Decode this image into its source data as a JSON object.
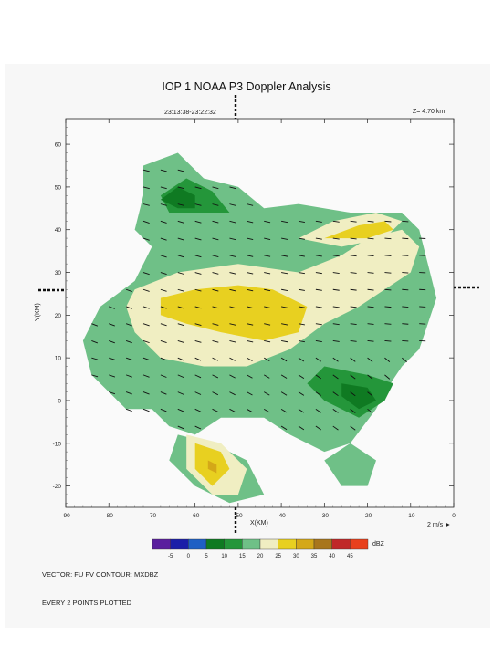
{
  "header": {
    "title": "IOP 1 NOAA P3 Doppler Analysis",
    "time_range": "23:13:38-23:22:32",
    "z_level": "Z=  4.70 km"
  },
  "footer": {
    "line1": "VECTOR: FU FV CONTOUR: MXDBZ",
    "line2": "EVERY  2 POINTS PLOTTED"
  },
  "scale_label": "2 m/s",
  "chart_data": {
    "type": "heatmap",
    "title": "IOP 1 NOAA P3 Doppler Analysis",
    "xlabel": "X(KM)",
    "ylabel": "Y(KM)",
    "xlim": [
      -90,
      0
    ],
    "ylim": [
      -25,
      66
    ],
    "x_ticks": [
      -90,
      -80,
      -70,
      -60,
      -50,
      -40,
      -30,
      -20,
      -10,
      0
    ],
    "y_ticks": [
      -20,
      -10,
      0,
      10,
      20,
      30,
      40,
      50,
      60
    ],
    "colorbar": {
      "unit": "dBZ",
      "levels": [
        -5,
        0,
        5,
        10,
        15,
        20,
        25,
        30,
        35,
        40,
        45
      ],
      "colors": [
        "#5a1f9e",
        "#1b1fa8",
        "#1f5fc4",
        "#0f7a22",
        "#24963a",
        "#6fc087",
        "#f0eec2",
        "#e8d020",
        "#d4a818",
        "#a8761c",
        "#c02828",
        "#e8401c"
      ]
    },
    "regions": [
      {
        "dbz": 15,
        "polygon": [
          [
            -72,
            55
          ],
          [
            -64,
            58
          ],
          [
            -58,
            52
          ],
          [
            -50,
            50
          ],
          [
            -44,
            45
          ],
          [
            -36,
            46
          ],
          [
            -24,
            44
          ],
          [
            -12,
            44
          ],
          [
            -8,
            40
          ],
          [
            -6,
            32
          ],
          [
            -4,
            24
          ],
          [
            -6,
            18
          ],
          [
            -8,
            12
          ],
          [
            -12,
            8
          ],
          [
            -16,
            2
          ],
          [
            -18,
            -2
          ],
          [
            -24,
            -10
          ],
          [
            -30,
            -12
          ],
          [
            -38,
            -8
          ],
          [
            -44,
            -4
          ],
          [
            -54,
            -4
          ],
          [
            -60,
            -8
          ],
          [
            -66,
            -6
          ],
          [
            -70,
            -2
          ],
          [
            -76,
            -2
          ],
          [
            -84,
            6
          ],
          [
            -86,
            14
          ],
          [
            -82,
            22
          ],
          [
            -74,
            28
          ],
          [
            -70,
            36
          ],
          [
            -74,
            40
          ],
          [
            -72,
            48
          ]
        ]
      },
      {
        "dbz": 15,
        "polygon": [
          [
            -24,
            -10
          ],
          [
            -18,
            -14
          ],
          [
            -20,
            -20
          ],
          [
            -26,
            -20
          ],
          [
            -30,
            -14
          ]
        ]
      },
      {
        "dbz": 15,
        "polygon": [
          [
            -64,
            -8
          ],
          [
            -56,
            -10
          ],
          [
            -48,
            -14
          ],
          [
            -44,
            -22
          ],
          [
            -52,
            -24
          ],
          [
            -60,
            -20
          ],
          [
            -66,
            -14
          ]
        ]
      },
      {
        "dbz": 20,
        "polygon": [
          [
            -74,
            26
          ],
          [
            -64,
            30
          ],
          [
            -50,
            32
          ],
          [
            -36,
            30
          ],
          [
            -26,
            34
          ],
          [
            -20,
            38
          ],
          [
            -12,
            40
          ],
          [
            -8,
            36
          ],
          [
            -10,
            30
          ],
          [
            -16,
            26
          ],
          [
            -22,
            22
          ],
          [
            -30,
            18
          ],
          [
            -38,
            12
          ],
          [
            -48,
            8
          ],
          [
            -58,
            8
          ],
          [
            -68,
            10
          ],
          [
            -74,
            16
          ],
          [
            -76,
            22
          ]
        ]
      },
      {
        "dbz": 20,
        "polygon": [
          [
            -36,
            38
          ],
          [
            -28,
            42
          ],
          [
            -18,
            44
          ],
          [
            -12,
            42
          ],
          [
            -16,
            38
          ],
          [
            -26,
            36
          ]
        ]
      },
      {
        "dbz": 20,
        "polygon": [
          [
            -62,
            -8
          ],
          [
            -54,
            -10
          ],
          [
            -48,
            -16
          ],
          [
            -50,
            -22
          ],
          [
            -56,
            -22
          ],
          [
            -62,
            -16
          ]
        ]
      },
      {
        "dbz": 25,
        "polygon": [
          [
            -68,
            24
          ],
          [
            -60,
            26
          ],
          [
            -50,
            27
          ],
          [
            -42,
            26
          ],
          [
            -34,
            22
          ],
          [
            -36,
            16
          ],
          [
            -44,
            14
          ],
          [
            -54,
            16
          ],
          [
            -62,
            18
          ],
          [
            -68,
            20
          ]
        ]
      },
      {
        "dbz": 25,
        "polygon": [
          [
            -30,
            38
          ],
          [
            -22,
            41
          ],
          [
            -16,
            42
          ],
          [
            -14,
            40
          ],
          [
            -20,
            38
          ]
        ]
      },
      {
        "dbz": 25,
        "polygon": [
          [
            -60,
            -10
          ],
          [
            -54,
            -12
          ],
          [
            -52,
            -16
          ],
          [
            -56,
            -20
          ],
          [
            -60,
            -16
          ]
        ]
      },
      {
        "dbz": 30,
        "polygon": [
          [
            -57,
            -14
          ],
          [
            -55,
            -15
          ],
          [
            -55,
            -17
          ],
          [
            -57,
            -16
          ]
        ]
      },
      {
        "dbz": 10,
        "polygon": [
          [
            -68,
            48
          ],
          [
            -62,
            52
          ],
          [
            -56,
            49
          ],
          [
            -52,
            44
          ],
          [
            -60,
            44
          ],
          [
            -66,
            44
          ]
        ]
      },
      {
        "dbz": 10,
        "polygon": [
          [
            -30,
            8
          ],
          [
            -20,
            6
          ],
          [
            -14,
            4
          ],
          [
            -16,
            0
          ],
          [
            -22,
            -4
          ],
          [
            -30,
            0
          ],
          [
            -34,
            4
          ]
        ]
      },
      {
        "dbz": 5,
        "polygon": [
          [
            -68,
            47
          ],
          [
            -64,
            50
          ],
          [
            -60,
            48
          ],
          [
            -60,
            45
          ],
          [
            -64,
            45
          ]
        ]
      },
      {
        "dbz": 5,
        "polygon": [
          [
            -26,
            4
          ],
          [
            -20,
            3
          ],
          [
            -18,
            0
          ],
          [
            -22,
            -2
          ],
          [
            -26,
            1
          ]
        ]
      }
    ]
  }
}
